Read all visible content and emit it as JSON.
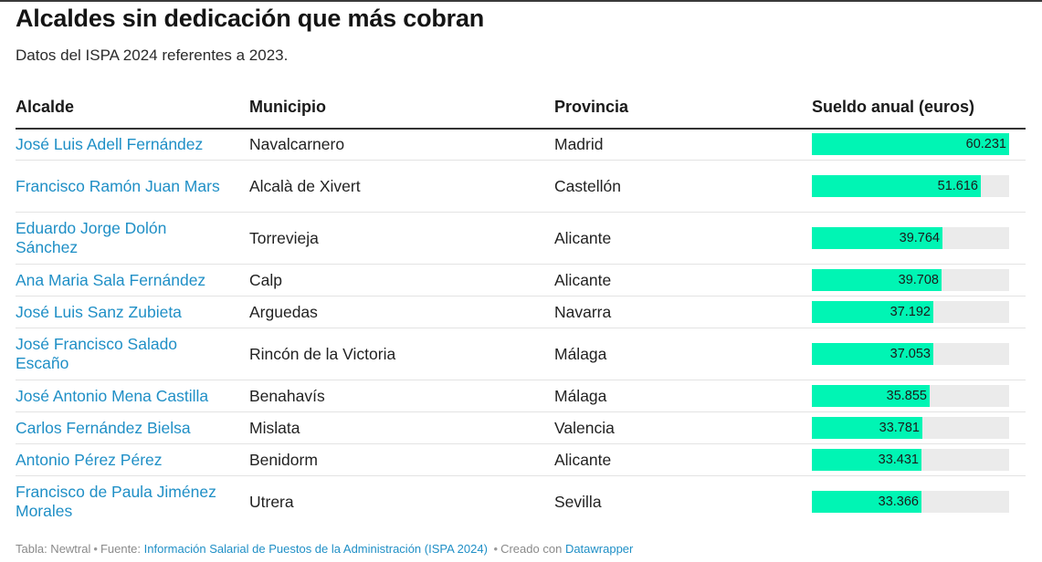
{
  "title": "Alcaldes sin dedicación que más cobran",
  "subtitle": "Datos del ISPA 2024 referentes a 2023.",
  "columns": {
    "alcalde": "Alcalde",
    "municipio": "Municipio",
    "provincia": "Provincia",
    "sueldo": "Sueldo anual (euros)"
  },
  "colors": {
    "bar": "#00f5b4",
    "bar_track": "#ebebeb",
    "link": "#1f8fc6"
  },
  "rows": [
    {
      "alcalde": "José Luis Adell Fernández",
      "municipio": "Navalcarnero",
      "provincia": "Madrid",
      "sueldo": 60231,
      "sueldo_label": "60.231"
    },
    {
      "alcalde": "Francisco Ramón Juan Mars",
      "municipio": "Alcalà de Xivert",
      "provincia": "Castellón",
      "sueldo": 51616,
      "sueldo_label": "51.616"
    },
    {
      "alcalde": "Eduardo Jorge Dolón Sánchez",
      "municipio": "Torrevieja",
      "provincia": "Alicante",
      "sueldo": 39764,
      "sueldo_label": "39.764"
    },
    {
      "alcalde": "Ana Maria Sala Fernández",
      "municipio": "Calp",
      "provincia": "Alicante",
      "sueldo": 39708,
      "sueldo_label": "39.708"
    },
    {
      "alcalde": "José Luis Sanz Zubieta",
      "municipio": "Arguedas",
      "provincia": "Navarra",
      "sueldo": 37192,
      "sueldo_label": "37.192"
    },
    {
      "alcalde": "José Francisco Salado Escaño",
      "municipio": "Rincón de la Victoria",
      "provincia": "Málaga",
      "sueldo": 37053,
      "sueldo_label": "37.053"
    },
    {
      "alcalde": "José Antonio Mena Castilla",
      "municipio": "Benahavís",
      "provincia": "Málaga",
      "sueldo": 35855,
      "sueldo_label": "35.855"
    },
    {
      "alcalde": "Carlos Fernández Bielsa",
      "municipio": "Mislata",
      "provincia": "Valencia",
      "sueldo": 33781,
      "sueldo_label": "33.781"
    },
    {
      "alcalde": "Antonio Pérez Pérez",
      "municipio": "Benidorm",
      "provincia": "Alicante",
      "sueldo": 33431,
      "sueldo_label": "33.431"
    },
    {
      "alcalde": "Francisco de Paula Jiménez Morales",
      "municipio": "Utrera",
      "provincia": "Sevilla",
      "sueldo": 33366,
      "sueldo_label": "33.366"
    }
  ],
  "footer": {
    "table_by": "Tabla: Newtral",
    "source_label": "Fuente:",
    "source_link": "Información Salarial de Puestos de la Administración (ISPA 2024)",
    "created_label": "Creado con",
    "created_link": "Datawrapper"
  }
}
